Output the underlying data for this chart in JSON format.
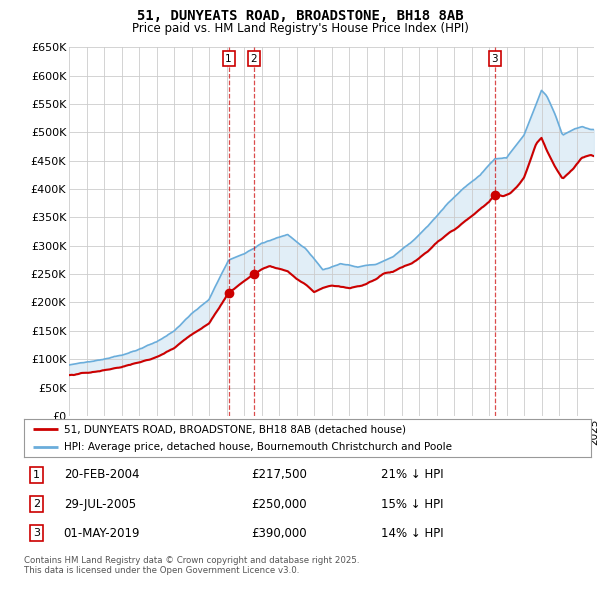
{
  "title": "51, DUNYEATS ROAD, BROADSTONE, BH18 8AB",
  "subtitle": "Price paid vs. HM Land Registry's House Price Index (HPI)",
  "ylabel_ticks": [
    "£0",
    "£50K",
    "£100K",
    "£150K",
    "£200K",
    "£250K",
    "£300K",
    "£350K",
    "£400K",
    "£450K",
    "£500K",
    "£550K",
    "£600K",
    "£650K"
  ],
  "ytick_vals": [
    0,
    50000,
    100000,
    150000,
    200000,
    250000,
    300000,
    350000,
    400000,
    450000,
    500000,
    550000,
    600000,
    650000
  ],
  "x_start_year": 1995,
  "x_end_year": 2025,
  "legend_line1": "51, DUNYEATS ROAD, BROADSTONE, BH18 8AB (detached house)",
  "legend_line2": "HPI: Average price, detached house, Bournemouth Christchurch and Poole",
  "transactions": [
    {
      "id": 1,
      "date": "20-FEB-2004",
      "price": "£217,500",
      "hpi_diff": "21% ↓ HPI",
      "year": 2004.12
    },
    {
      "id": 2,
      "date": "29-JUL-2005",
      "price": "£250,000",
      "hpi_diff": "15% ↓ HPI",
      "year": 2005.55
    },
    {
      "id": 3,
      "date": "01-MAY-2019",
      "price": "£390,000",
      "hpi_diff": "14% ↓ HPI",
      "year": 2019.33
    }
  ],
  "transaction_prices": [
    217500,
    250000,
    390000
  ],
  "footnote1": "Contains HM Land Registry data © Crown copyright and database right 2025.",
  "footnote2": "This data is licensed under the Open Government Licence v3.0.",
  "hpi_color": "#6aaddb",
  "hpi_fill_color": "#daeaf5",
  "price_color": "#cc0000",
  "transaction_vline_color": "#cc0000",
  "grid_color": "#cccccc",
  "background_color": "#ffffff"
}
